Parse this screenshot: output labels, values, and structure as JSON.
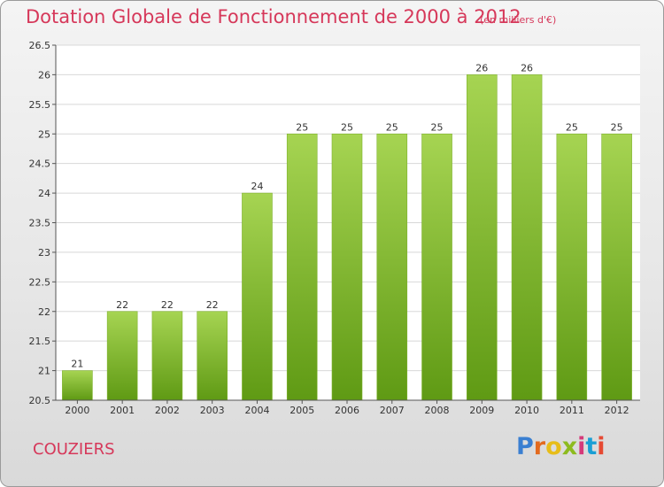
{
  "header": {
    "title": "Dotation Globale de Fonctionnement de 2000 à 2012",
    "subtitle": "(en milliers d'€)"
  },
  "footer": {
    "commune": "COUZIERS",
    "logo_text": "Proxiti",
    "logo_colors": [
      "#3a7fd1",
      "#e36a1e",
      "#e7bd19",
      "#8dbb1f",
      "#d63a7a",
      "#1a9fd4",
      "#e64a33"
    ]
  },
  "chart_data": {
    "type": "bar",
    "title": "Dotation Globale de Fonctionnement de 2000 à 2012",
    "subtitle": "(en milliers d'€)",
    "categories": [
      "2000",
      "2001",
      "2002",
      "2003",
      "2004",
      "2005",
      "2006",
      "2007",
      "2008",
      "2009",
      "2010",
      "2011",
      "2012"
    ],
    "values": [
      21,
      22,
      22,
      22,
      24,
      25,
      25,
      25,
      25,
      26,
      26,
      25,
      25
    ],
    "data_labels": [
      "21",
      "22",
      "22",
      "22",
      "24",
      "25",
      "25",
      "25",
      "25",
      "26",
      "26",
      "25",
      "25"
    ],
    "y_ticks": [
      "20.5",
      "21",
      "21.5",
      "22",
      "22.5",
      "23",
      "23.5",
      "24",
      "24.5",
      "25",
      "25.5",
      "26",
      "26.5"
    ],
    "ylim": [
      20.5,
      26.5
    ],
    "grid": true,
    "colors": {
      "bar_top": "#a6d452",
      "bar_bottom": "#5f9a14",
      "grid": "#d8d8d8"
    }
  }
}
